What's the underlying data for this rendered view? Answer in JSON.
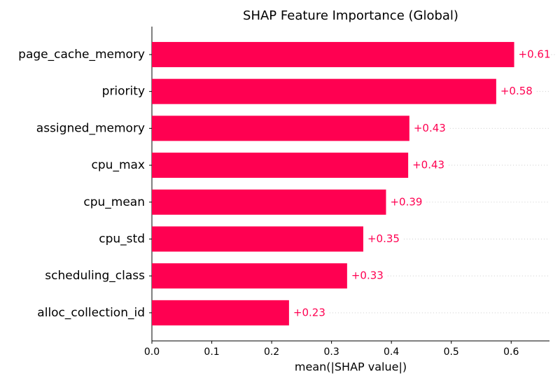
{
  "chart_data": {
    "type": "barh",
    "title": "SHAP Feature Importance (Global)",
    "xlabel": "mean(|SHAP value|)",
    "categories": [
      "page_cache_memory",
      "priority",
      "assigned_memory",
      "cpu_max",
      "cpu_mean",
      "cpu_std",
      "scheduling_class",
      "alloc_collection_id"
    ],
    "values": [
      0.605,
      0.575,
      0.43,
      0.428,
      0.391,
      0.353,
      0.326,
      0.229
    ],
    "value_labels": [
      "+0.61",
      "+0.58",
      "+0.43",
      "+0.43",
      "+0.39",
      "+0.35",
      "+0.33",
      "+0.23"
    ],
    "color": "#ff0051",
    "xlim": [
      0,
      0.664
    ],
    "xticks": [
      {
        "value": 0,
        "label": "0.0"
      },
      0.1,
      0.2,
      0.3,
      0.4,
      0.5,
      0.6
    ]
  }
}
